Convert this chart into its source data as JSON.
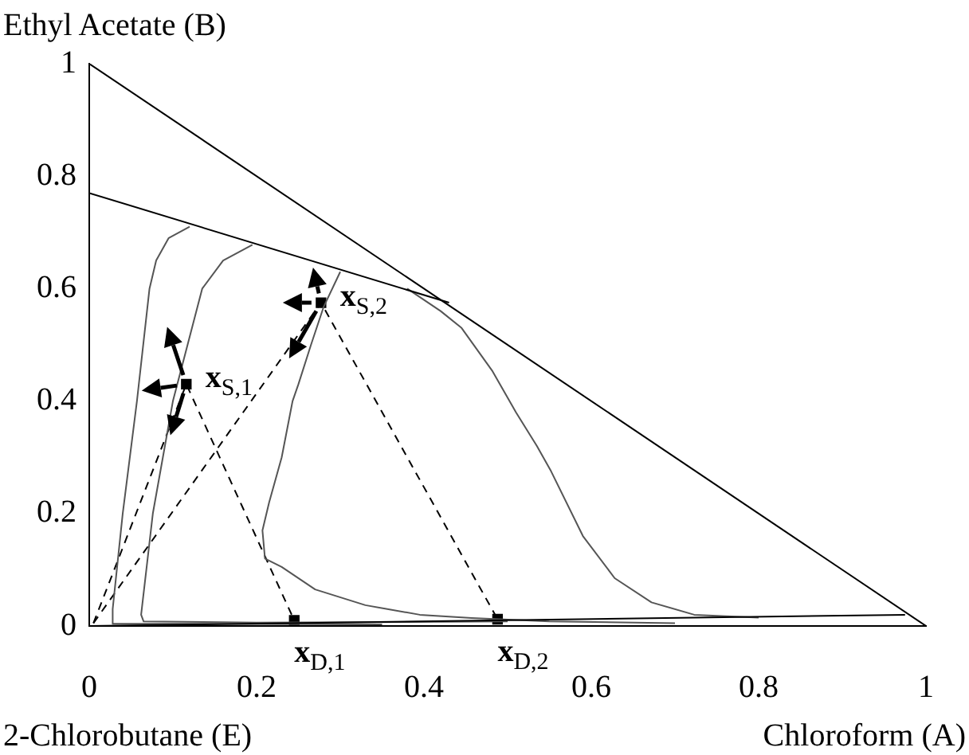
{
  "chart_data": {
    "type": "line",
    "xlabel": "Chloroform (A)",
    "ylabel": "Ethyl Acetate (B)",
    "xlim": [
      0,
      1
    ],
    "ylim": [
      0,
      1
    ],
    "xticks": [
      0,
      0.2,
      0.4,
      0.6,
      0.8,
      1
    ],
    "yticks": [
      0,
      0.2,
      0.4,
      0.6,
      0.8,
      1
    ],
    "grid": false,
    "legend": false,
    "series": [
      {
        "type": "line",
        "color": "#000000",
        "line_style": "solid",
        "x": [
          0,
          1
        ],
        "values": [
          1,
          0
        ]
      },
      {
        "type": "line",
        "color": "#000000",
        "line_style": "solid",
        "x": [
          0,
          0.43
        ],
        "values": [
          0.77,
          0.575
        ]
      },
      {
        "type": "line",
        "color": "#000000",
        "line_style": "solid",
        "x": [
          0,
          0.975
        ],
        "values": [
          0,
          0.02
        ]
      },
      {
        "type": "line",
        "color": "#555555",
        "line_style": "solid",
        "x": [
          0.35,
          0.1,
          0.028,
          0.028,
          0.04,
          0.057,
          0.072,
          0.08,
          0.095,
          0.12
        ],
        "values": [
          0.003,
          0.004,
          0.004,
          0.03,
          0.2,
          0.4,
          0.6,
          0.65,
          0.69,
          0.71
        ]
      },
      {
        "type": "line",
        "color": "#555555",
        "line_style": "solid",
        "x": [
          0.5,
          0.2,
          0.065,
          0.062,
          0.076,
          0.1,
          0.135,
          0.16,
          0.195
        ],
        "values": [
          0.008,
          0.006,
          0.008,
          0.02,
          0.2,
          0.4,
          0.6,
          0.65,
          0.678
        ]
      },
      {
        "type": "line",
        "color": "#555555",
        "line_style": "solid",
        "x": [
          0.3,
          0.28,
          0.265,
          0.25,
          0.243,
          0.23,
          0.215,
          0.207,
          0.21,
          0.23,
          0.27,
          0.33,
          0.395,
          0.457,
          0.55,
          0.7
        ],
        "values": [
          0.63,
          0.567,
          0.5,
          0.43,
          0.4,
          0.3,
          0.22,
          0.17,
          0.12,
          0.105,
          0.065,
          0.037,
          0.02,
          0.014,
          0.008,
          0.005
        ]
      },
      {
        "type": "line",
        "color": "#555555",
        "line_style": "solid",
        "x": [
          0.38,
          0.42,
          0.445,
          0.482,
          0.51,
          0.535,
          0.552,
          0.59,
          0.628,
          0.672,
          0.723,
          0.8
        ],
        "values": [
          0.6,
          0.56,
          0.53,
          0.453,
          0.38,
          0.32,
          0.275,
          0.16,
          0.085,
          0.042,
          0.02,
          0.015
        ]
      },
      {
        "type": "line",
        "color": "#000000",
        "line_style": "dashed",
        "x": [
          0.005,
          0.116,
          0.245
        ],
        "values": [
          0.005,
          0.43,
          0.01
        ]
      },
      {
        "type": "line",
        "color": "#000000",
        "line_style": "dashed",
        "x": [
          0.005,
          0.277,
          0.488
        ],
        "values": [
          0.005,
          0.575,
          0.012
        ]
      },
      {
        "type": "scatter",
        "color": "#000000",
        "marker": "square",
        "x": [
          0.116,
          0.277,
          0.245,
          0.488
        ],
        "values": [
          0.43,
          0.575,
          0.01,
          0.012
        ]
      }
    ],
    "annotations": [
      {
        "text": "x$_{S,1}$",
        "x": 0.116,
        "y": 0.43
      },
      {
        "text": "x$_{S,2}$",
        "x": 0.277,
        "y": 0.575
      },
      {
        "text": "x$_{D,1}$",
        "x": 0.245,
        "y": 0.01
      },
      {
        "text": "x$_{D,2}$",
        "x": 0.488,
        "y": 0.012
      },
      "2-Chlorobutane (E)"
    ]
  }
}
